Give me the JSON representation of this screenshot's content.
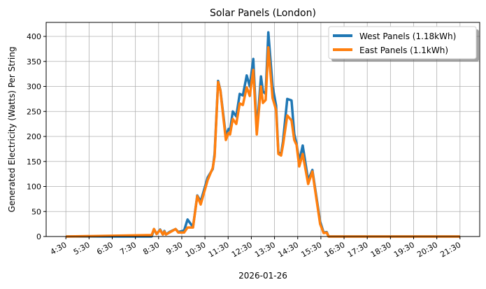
{
  "chart_data": {
    "type": "line",
    "title": "Solar Panels (London)",
    "xlabel": "2026-01-26",
    "ylabel": "Generated Electricity (Watts) Per String",
    "xlim": [
      "03:39",
      "22:21"
    ],
    "ylim": [
      0,
      428
    ],
    "grid": true,
    "legend_position": "top-right",
    "x_ticks": [
      "4:30",
      "5:30",
      "6:30",
      "7:30",
      "8:30",
      "9:30",
      "10:30",
      "11:30",
      "12:30",
      "13:30",
      "14:30",
      "15:30",
      "16:30",
      "17:30",
      "18:30",
      "19:30",
      "20:30",
      "21:30"
    ],
    "y_ticks": [
      0,
      50,
      100,
      150,
      200,
      250,
      300,
      350,
      400
    ],
    "series": [
      {
        "name": "West Panels (1.18kWh)",
        "color": "#1f77b4",
        "points": [
          [
            "04:30",
            0
          ],
          [
            "08:12",
            0
          ],
          [
            "08:18",
            15
          ],
          [
            "08:25",
            5
          ],
          [
            "08:34",
            14
          ],
          [
            "08:41",
            4
          ],
          [
            "08:45",
            11
          ],
          [
            "08:49",
            4
          ],
          [
            "08:58",
            9
          ],
          [
            "09:14",
            15
          ],
          [
            "09:21",
            9
          ],
          [
            "09:36",
            12
          ],
          [
            "09:45",
            34
          ],
          [
            "09:59",
            19
          ],
          [
            "10:10",
            82
          ],
          [
            "10:19",
            70
          ],
          [
            "10:37",
            118
          ],
          [
            "10:50",
            135
          ],
          [
            "10:55",
            165
          ],
          [
            "11:04",
            311
          ],
          [
            "11:10",
            292
          ],
          [
            "11:24",
            200
          ],
          [
            "11:31",
            215
          ],
          [
            "11:35",
            212
          ],
          [
            "11:42",
            250
          ],
          [
            "11:51",
            240
          ],
          [
            "12:00",
            285
          ],
          [
            "12:08",
            282
          ],
          [
            "12:18",
            322
          ],
          [
            "12:26",
            300
          ],
          [
            "12:35",
            355
          ],
          [
            "12:44",
            210
          ],
          [
            "12:55",
            320
          ],
          [
            "13:00",
            290
          ],
          [
            "13:07",
            285
          ],
          [
            "13:14",
            408
          ],
          [
            "13:25",
            300
          ],
          [
            "13:34",
            262
          ],
          [
            "13:40",
            168
          ],
          [
            "13:47",
            165
          ],
          [
            "13:52",
            190
          ],
          [
            "14:03",
            275
          ],
          [
            "14:14",
            272
          ],
          [
            "14:21",
            205
          ],
          [
            "14:27",
            185
          ],
          [
            "14:34",
            150
          ],
          [
            "14:43",
            182
          ],
          [
            "14:57",
            112
          ],
          [
            "15:08",
            133
          ],
          [
            "15:28",
            30
          ],
          [
            "15:37",
            8
          ],
          [
            "15:45",
            9
          ],
          [
            "15:50",
            0
          ],
          [
            "21:30",
            0
          ]
        ]
      },
      {
        "name": "East Panels (1.1kWh)",
        "color": "#ff7f0e",
        "points": [
          [
            "04:30",
            0
          ],
          [
            "08:12",
            3
          ],
          [
            "08:18",
            15
          ],
          [
            "08:25",
            5
          ],
          [
            "08:34",
            13
          ],
          [
            "08:41",
            4
          ],
          [
            "08:45",
            10
          ],
          [
            "08:49",
            4
          ],
          [
            "08:58",
            8
          ],
          [
            "09:14",
            15
          ],
          [
            "09:21",
            8
          ],
          [
            "09:36",
            8
          ],
          [
            "09:45",
            18
          ],
          [
            "09:59",
            18
          ],
          [
            "10:10",
            81
          ],
          [
            "10:19",
            64
          ],
          [
            "10:37",
            113
          ],
          [
            "10:50",
            137
          ],
          [
            "10:55",
            160
          ],
          [
            "11:04",
            309
          ],
          [
            "11:10",
            291
          ],
          [
            "11:24",
            193
          ],
          [
            "11:31",
            207
          ],
          [
            "11:35",
            204
          ],
          [
            "11:42",
            235
          ],
          [
            "11:51",
            225
          ],
          [
            "12:00",
            266
          ],
          [
            "12:08",
            263
          ],
          [
            "12:18",
            298
          ],
          [
            "12:26",
            281
          ],
          [
            "12:35",
            333
          ],
          [
            "12:44",
            204
          ],
          [
            "12:55",
            300
          ],
          [
            "13:00",
            267
          ],
          [
            "13:07",
            273
          ],
          [
            "13:14",
            378
          ],
          [
            "13:25",
            277
          ],
          [
            "13:34",
            253
          ],
          [
            "13:40",
            165
          ],
          [
            "13:47",
            162
          ],
          [
            "13:52",
            183
          ],
          [
            "14:03",
            242
          ],
          [
            "14:14",
            232
          ],
          [
            "14:21",
            193
          ],
          [
            "14:27",
            183
          ],
          [
            "14:34",
            140
          ],
          [
            "14:43",
            165
          ],
          [
            "14:57",
            105
          ],
          [
            "15:08",
            130
          ],
          [
            "15:28",
            25
          ],
          [
            "15:37",
            7
          ],
          [
            "15:45",
            8
          ],
          [
            "15:50",
            0
          ],
          [
            "21:30",
            0
          ]
        ]
      }
    ]
  }
}
